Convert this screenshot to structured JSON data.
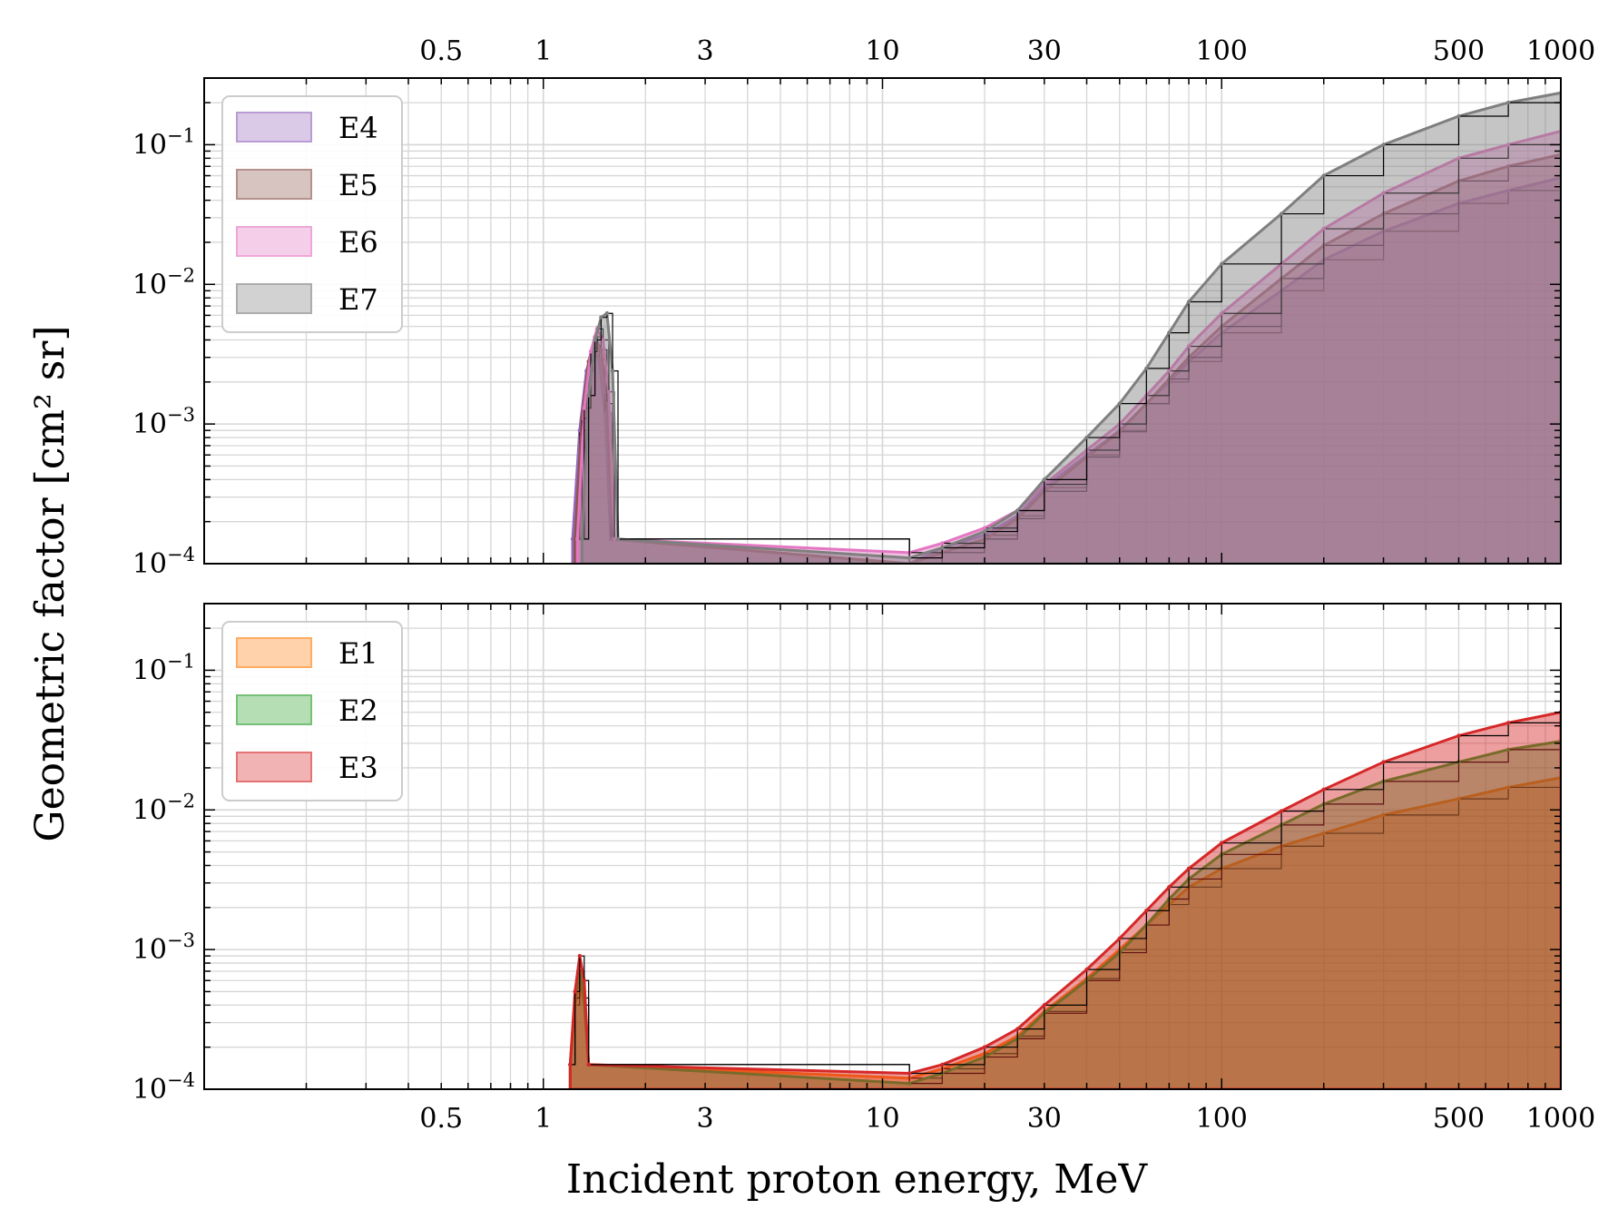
{
  "chart_data": [
    {
      "type": "area",
      "panel": "top",
      "title": "",
      "xlabel": "Incident proton energy, MeV",
      "ylabel": "Geometric factor [cm² sr]",
      "xscale": "log",
      "yscale": "log",
      "xlim": [
        0.1,
        1000
      ],
      "ylim": [
        0.0001,
        0.3
      ],
      "grid": true,
      "legend_position": "top-left",
      "x_ticks": [
        0.5,
        1,
        3,
        10,
        30,
        100,
        500,
        1000
      ],
      "x_tick_labels": [
        "0.5",
        "1",
        "3",
        "10",
        "30",
        "100",
        "500",
        "1000"
      ],
      "y_ticks": [
        0.0001,
        0.001,
        0.01,
        0.1
      ],
      "series": [
        {
          "name": "E4",
          "color": "#9467bd",
          "x": [
            1.22,
            1.28,
            1.34,
            1.4,
            1.46,
            1.52,
            1.58,
            12,
            15,
            20,
            25,
            30,
            40,
            50,
            60,
            70,
            80,
            100,
            150,
            200,
            300,
            500,
            700,
            1000
          ],
          "y": [
            0.00015,
            0.0009,
            0.0024,
            0.0035,
            0.0029,
            0.0012,
            0.00015,
            0.0001,
            0.00013,
            0.00016,
            0.00022,
            0.00035,
            0.0006,
            0.0009,
            0.0014,
            0.002,
            0.0028,
            0.0045,
            0.009,
            0.015,
            0.024,
            0.038,
            0.047,
            0.058
          ]
        },
        {
          "name": "E5",
          "color": "#8c564b",
          "x": [
            1.24,
            1.3,
            1.36,
            1.42,
            1.48,
            1.54,
            1.6,
            12,
            15,
            20,
            25,
            30,
            40,
            50,
            60,
            70,
            80,
            100,
            150,
            200,
            300,
            500,
            700,
            1000
          ],
          "y": [
            0.00015,
            0.0011,
            0.0028,
            0.0042,
            0.0034,
            0.0014,
            0.00015,
            0.0001,
            0.00012,
            0.00015,
            0.00021,
            0.00033,
            0.00058,
            0.00088,
            0.0014,
            0.0021,
            0.003,
            0.005,
            0.011,
            0.019,
            0.032,
            0.055,
            0.07,
            0.085
          ]
        },
        {
          "name": "E6",
          "color": "#e377c2",
          "x": [
            1.26,
            1.32,
            1.38,
            1.44,
            1.5,
            1.56,
            1.62,
            12,
            15,
            20,
            25,
            30,
            40,
            50,
            60,
            70,
            80,
            100,
            150,
            200,
            300,
            500,
            700,
            1000
          ],
          "y": [
            0.00015,
            0.0013,
            0.0033,
            0.0048,
            0.004,
            0.0017,
            0.00015,
            0.00012,
            0.00014,
            0.00018,
            0.00024,
            0.00037,
            0.00065,
            0.001,
            0.0016,
            0.0024,
            0.0036,
            0.0062,
            0.014,
            0.025,
            0.045,
            0.08,
            0.1,
            0.125
          ]
        },
        {
          "name": "E7",
          "color": "#7f7f7f",
          "x": [
            1.3,
            1.36,
            1.42,
            1.48,
            1.54,
            1.6,
            1.66,
            12,
            15,
            20,
            25,
            30,
            40,
            50,
            60,
            70,
            80,
            100,
            150,
            200,
            300,
            500,
            700,
            1000
          ],
          "y": [
            0.00015,
            0.0016,
            0.004,
            0.0058,
            0.0062,
            0.0024,
            0.00015,
            0.00011,
            0.00013,
            0.00017,
            0.00024,
            0.0004,
            0.0008,
            0.0014,
            0.0025,
            0.0045,
            0.0075,
            0.014,
            0.032,
            0.06,
            0.1,
            0.16,
            0.2,
            0.235
          ]
        }
      ]
    },
    {
      "type": "area",
      "panel": "bottom",
      "title": "",
      "xlabel": "Incident proton energy, MeV",
      "ylabel": "Geometric factor [cm² sr]",
      "xscale": "log",
      "yscale": "log",
      "xlim": [
        0.1,
        1000
      ],
      "ylim": [
        0.0001,
        0.3
      ],
      "grid": true,
      "legend_position": "top-left",
      "x_ticks": [
        0.5,
        1,
        3,
        10,
        30,
        100,
        500,
        1000
      ],
      "x_tick_labels": [
        "0.5",
        "1",
        "3",
        "10",
        "30",
        "100",
        "500",
        "1000"
      ],
      "y_ticks": [
        0.0001,
        0.001,
        0.01,
        0.1
      ],
      "series": [
        {
          "name": "E1",
          "color": "#ff7f0e",
          "x": [
            1.2,
            1.24,
            1.28,
            1.32,
            1.36,
            12,
            15,
            20,
            25,
            30,
            40,
            50,
            60,
            70,
            80,
            100,
            150,
            200,
            300,
            500,
            700,
            1000
          ],
          "y": [
            0.00015,
            0.0004,
            0.0006,
            0.0004,
            0.00015,
            0.00012,
            0.00014,
            0.00018,
            0.00024,
            0.00036,
            0.00062,
            0.001,
            0.0015,
            0.0021,
            0.0028,
            0.0038,
            0.0055,
            0.0068,
            0.0092,
            0.012,
            0.0145,
            0.017
          ]
        },
        {
          "name": "E2",
          "color": "#2ca02c",
          "x": [
            1.2,
            1.24,
            1.28,
            1.32,
            1.36,
            12,
            15,
            20,
            25,
            30,
            40,
            50,
            60,
            70,
            80,
            100,
            150,
            200,
            300,
            500,
            700,
            1000
          ],
          "y": [
            0.00015,
            0.00045,
            0.0007,
            0.00045,
            0.00015,
            0.00011,
            0.00013,
            0.00017,
            0.00023,
            0.00035,
            0.0006,
            0.00095,
            0.0015,
            0.0023,
            0.0032,
            0.0048,
            0.0078,
            0.011,
            0.016,
            0.022,
            0.027,
            0.031
          ]
        },
        {
          "name": "E3",
          "color": "#d62728",
          "x": [
            1.2,
            1.24,
            1.28,
            1.32,
            1.36,
            12,
            15,
            20,
            25,
            30,
            40,
            50,
            60,
            70,
            80,
            100,
            150,
            200,
            300,
            500,
            700,
            1000
          ],
          "y": [
            0.00015,
            0.0005,
            0.0009,
            0.0006,
            0.00015,
            0.00013,
            0.00015,
            0.0002,
            0.00027,
            0.0004,
            0.00072,
            0.0012,
            0.0019,
            0.0028,
            0.0038,
            0.0058,
            0.0098,
            0.014,
            0.022,
            0.034,
            0.042,
            0.05
          ]
        }
      ]
    }
  ]
}
